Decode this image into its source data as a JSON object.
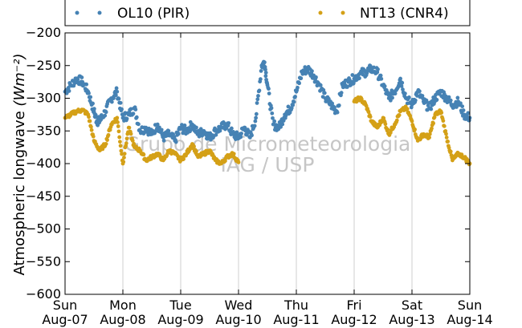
{
  "chart_data": {
    "type": "scatter",
    "ylabel": "Atmospheric longwave",
    "ylabel_units": "(Wm⁻²)",
    "ylim": [
      -600,
      -200
    ],
    "yticks": [
      -200,
      -250,
      -300,
      -350,
      -400,
      -450,
      -500,
      -550,
      -600
    ],
    "ytick_labels": [
      "−200",
      "−250",
      "−300",
      "−350",
      "−400",
      "−450",
      "−500",
      "−550",
      "−600"
    ],
    "xlim": [
      "2014-08-07",
      "2014-08-14"
    ],
    "xticks": [
      {
        "day": "Sun",
        "date": "Aug-07"
      },
      {
        "day": "Mon",
        "date": "Aug-08"
      },
      {
        "day": "Tue",
        "date": "Aug-09"
      },
      {
        "day": "Wed",
        "date": "Aug-10"
      },
      {
        "day": "Thu",
        "date": "Aug-11"
      },
      {
        "day": "Fri",
        "date": "Aug-12"
      },
      {
        "day": "Sat",
        "date": "Aug-13"
      },
      {
        "day": "Sun",
        "date": "Aug-14"
      }
    ],
    "grid": "vertical",
    "legend_placement": "top, outside",
    "watermark": [
      "Grupo de Micrometeorologia",
      "IAG / USP"
    ],
    "series": [
      {
        "name": "OL10 (PIR)",
        "color": "#4682b4",
        "x_days": [
          0.0,
          0.1,
          0.2,
          0.3,
          0.4,
          0.5,
          0.55,
          0.6,
          0.7,
          0.8,
          0.9,
          1.0,
          1.1,
          1.2,
          1.3,
          1.4,
          1.5,
          1.6,
          1.7,
          1.8,
          1.9,
          2.0,
          2.1,
          2.2,
          2.3,
          2.4,
          2.5,
          2.6,
          2.7,
          2.8,
          2.9,
          3.0,
          3.1,
          3.2,
          3.3,
          3.4,
          3.45,
          3.5,
          3.6,
          3.7,
          3.8,
          3.9,
          4.0,
          4.1,
          4.2,
          4.3,
          4.4,
          4.5,
          4.6,
          4.7,
          4.8,
          4.9,
          5.0,
          5.1,
          5.2,
          5.3,
          5.4,
          5.5,
          5.6,
          5.7,
          5.8,
          5.9,
          6.0,
          6.1,
          6.2,
          6.3,
          6.4,
          6.5,
          6.6,
          6.7,
          6.8,
          6.9,
          7.0
        ],
        "y": [
          -290,
          -280,
          -270,
          -275,
          -290,
          -320,
          -335,
          -335,
          -320,
          -300,
          -290,
          -330,
          -325,
          -315,
          -350,
          -345,
          -355,
          -340,
          -360,
          -355,
          -365,
          -345,
          -350,
          -340,
          -355,
          -350,
          -360,
          -350,
          -345,
          -340,
          -355,
          -360,
          -345,
          -360,
          -330,
          -250,
          -245,
          -280,
          -340,
          -345,
          -325,
          -315,
          -290,
          -260,
          -255,
          -265,
          -280,
          -300,
          -310,
          -320,
          -280,
          -275,
          -270,
          -262,
          -260,
          -255,
          -260,
          -280,
          -300,
          -290,
          -270,
          -300,
          -310,
          -290,
          -305,
          -315,
          -300,
          -290,
          -300,
          -310,
          -305,
          -325,
          -330
        ]
      },
      {
        "name": "NT13 (CNR4)",
        "color": "#d4a017",
        "x_days": [
          0.0,
          0.1,
          0.2,
          0.3,
          0.4,
          0.5,
          0.6,
          0.7,
          0.8,
          0.9,
          1.0,
          1.1,
          1.2,
          1.3,
          1.4,
          1.5,
          1.6,
          1.7,
          1.8,
          1.9,
          2.0,
          2.1,
          2.2,
          2.3,
          2.4,
          2.5,
          2.6,
          2.7,
          2.8,
          2.9,
          3.0,
          5.0,
          5.1,
          5.2,
          5.3,
          5.4,
          5.5,
          5.6,
          5.7,
          5.8,
          5.9,
          6.0,
          6.1,
          6.2,
          6.3,
          6.4,
          6.5,
          6.6,
          6.7,
          6.8,
          6.9,
          7.0
        ],
        "y": [
          -330,
          -325,
          -320,
          -318,
          -325,
          -365,
          -380,
          -370,
          -340,
          -330,
          -400,
          -345,
          -375,
          -380,
          -395,
          -390,
          -385,
          -395,
          -380,
          -385,
          -395,
          -385,
          -370,
          -390,
          -385,
          -380,
          -395,
          -400,
          -390,
          -385,
          -398,
          -305,
          -300,
          -310,
          -335,
          -345,
          -330,
          -355,
          -340,
          -320,
          -315,
          -335,
          -365,
          -355,
          -360,
          -325,
          -320,
          -360,
          -395,
          -385,
          -390,
          -400
        ]
      }
    ]
  }
}
